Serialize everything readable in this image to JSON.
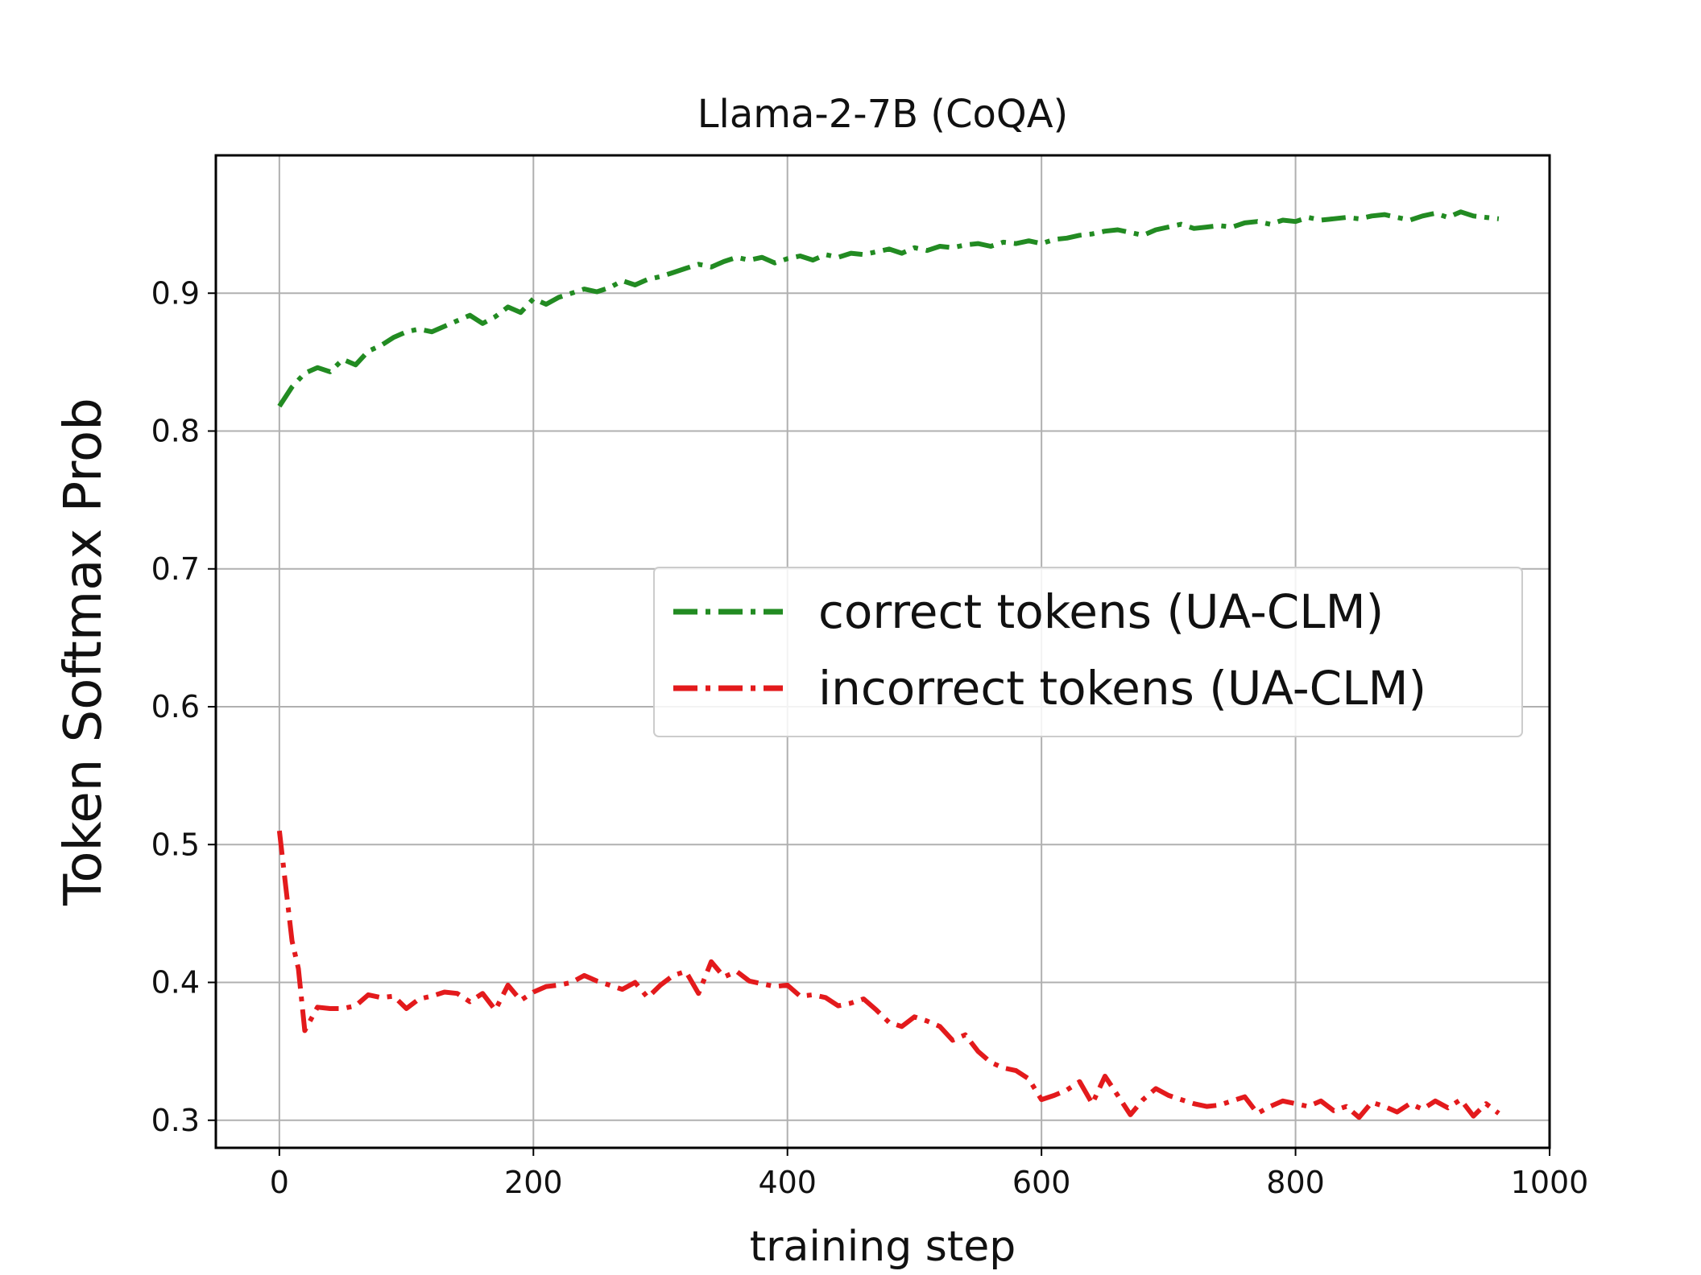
{
  "chart_data": {
    "type": "line",
    "title": "Llama-2-7B (CoQA)",
    "xlabel": "training step",
    "ylabel": "Token Softmax Prob",
    "xlim": [
      -50,
      1000
    ],
    "ylim": [
      0.28,
      1.0
    ],
    "xticks": [
      0,
      200,
      400,
      600,
      800,
      1000
    ],
    "xtick_labels": [
      "0",
      "200",
      "400",
      "600",
      "800",
      "1000"
    ],
    "yticks": [
      0.3,
      0.4,
      0.5,
      0.6,
      0.7,
      0.8,
      0.9
    ],
    "ytick_labels": [
      "0.3",
      "0.4",
      "0.5",
      "0.6",
      "0.7",
      "0.8",
      "0.9"
    ],
    "grid": true,
    "legend_position": "center-right",
    "series": [
      {
        "name": "correct tokens (UA-CLM)",
        "color": "#228b22",
        "line_style": "dashdot",
        "x": [
          0,
          10,
          20,
          30,
          40,
          50,
          60,
          70,
          80,
          90,
          100,
          110,
          120,
          130,
          140,
          150,
          160,
          170,
          180,
          190,
          200,
          210,
          220,
          230,
          240,
          250,
          260,
          270,
          280,
          290,
          300,
          310,
          320,
          330,
          340,
          350,
          360,
          370,
          380,
          390,
          400,
          410,
          420,
          430,
          440,
          450,
          460,
          470,
          480,
          490,
          500,
          510,
          520,
          530,
          540,
          550,
          560,
          570,
          580,
          590,
          600,
          610,
          620,
          630,
          640,
          650,
          660,
          670,
          680,
          690,
          700,
          710,
          720,
          730,
          740,
          750,
          760,
          770,
          780,
          790,
          800,
          810,
          820,
          830,
          840,
          850,
          860,
          870,
          880,
          890,
          900,
          910,
          920,
          930,
          940,
          950,
          960
        ],
        "y": [
          0.818,
          0.832,
          0.842,
          0.846,
          0.843,
          0.852,
          0.848,
          0.858,
          0.862,
          0.868,
          0.872,
          0.874,
          0.872,
          0.876,
          0.88,
          0.884,
          0.878,
          0.883,
          0.89,
          0.886,
          0.896,
          0.892,
          0.897,
          0.9,
          0.903,
          0.901,
          0.904,
          0.909,
          0.906,
          0.91,
          0.912,
          0.915,
          0.918,
          0.921,
          0.919,
          0.923,
          0.926,
          0.924,
          0.926,
          0.922,
          0.925,
          0.927,
          0.924,
          0.928,
          0.926,
          0.929,
          0.928,
          0.93,
          0.932,
          0.929,
          0.933,
          0.931,
          0.934,
          0.933,
          0.935,
          0.936,
          0.934,
          0.937,
          0.936,
          0.938,
          0.936,
          0.939,
          0.94,
          0.942,
          0.943,
          0.945,
          0.946,
          0.944,
          0.942,
          0.946,
          0.948,
          0.95,
          0.947,
          0.948,
          0.949,
          0.948,
          0.951,
          0.952,
          0.95,
          0.953,
          0.952,
          0.955,
          0.953,
          0.954,
          0.955,
          0.954,
          0.956,
          0.957,
          0.955,
          0.953,
          0.956,
          0.958,
          0.955,
          0.959,
          0.956,
          0.955,
          0.954
        ]
      },
      {
        "name": "incorrect tokens (UA-CLM)",
        "color": "#e31a1c",
        "line_style": "dashdot",
        "x": [
          0,
          5,
          10,
          15,
          20,
          30,
          40,
          50,
          60,
          70,
          80,
          90,
          100,
          110,
          120,
          130,
          140,
          150,
          160,
          170,
          180,
          190,
          200,
          210,
          220,
          230,
          240,
          250,
          260,
          270,
          280,
          290,
          300,
          310,
          320,
          330,
          340,
          350,
          360,
          370,
          380,
          390,
          400,
          410,
          420,
          430,
          440,
          450,
          460,
          470,
          480,
          490,
          500,
          510,
          520,
          530,
          540,
          550,
          560,
          570,
          580,
          590,
          600,
          610,
          620,
          630,
          640,
          650,
          660,
          670,
          680,
          690,
          700,
          710,
          720,
          730,
          740,
          750,
          760,
          770,
          780,
          790,
          800,
          810,
          820,
          830,
          840,
          850,
          860,
          870,
          880,
          890,
          900,
          910,
          920,
          930,
          940,
          950,
          960
        ],
        "y": [
          0.51,
          0.47,
          0.43,
          0.41,
          0.365,
          0.382,
          0.381,
          0.381,
          0.383,
          0.391,
          0.389,
          0.39,
          0.381,
          0.388,
          0.39,
          0.393,
          0.392,
          0.386,
          0.392,
          0.38,
          0.398,
          0.387,
          0.393,
          0.397,
          0.398,
          0.4,
          0.405,
          0.401,
          0.398,
          0.395,
          0.4,
          0.389,
          0.398,
          0.405,
          0.408,
          0.392,
          0.415,
          0.404,
          0.408,
          0.401,
          0.399,
          0.397,
          0.398,
          0.39,
          0.391,
          0.389,
          0.383,
          0.385,
          0.388,
          0.38,
          0.371,
          0.368,
          0.375,
          0.372,
          0.368,
          0.358,
          0.362,
          0.35,
          0.342,
          0.338,
          0.336,
          0.33,
          0.315,
          0.318,
          0.322,
          0.328,
          0.312,
          0.332,
          0.318,
          0.304,
          0.315,
          0.323,
          0.318,
          0.315,
          0.312,
          0.31,
          0.311,
          0.314,
          0.317,
          0.305,
          0.31,
          0.314,
          0.312,
          0.31,
          0.314,
          0.307,
          0.31,
          0.302,
          0.313,
          0.31,
          0.306,
          0.312,
          0.308,
          0.314,
          0.309,
          0.315,
          0.303,
          0.312,
          0.305
        ]
      }
    ]
  }
}
